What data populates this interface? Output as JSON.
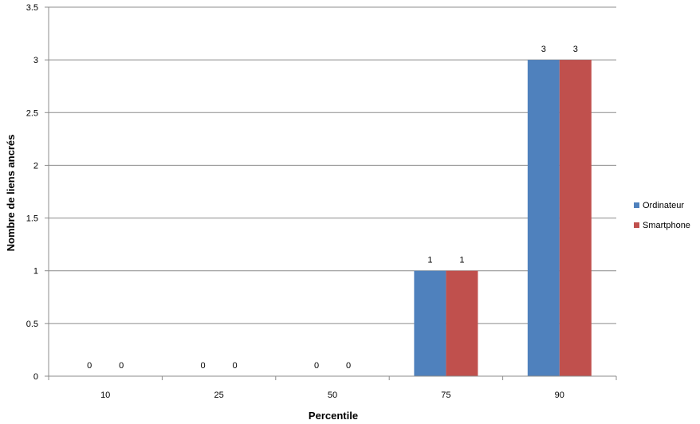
{
  "chart_data": {
    "type": "bar",
    "title": "",
    "xlabel": "Percentile",
    "ylabel": "Nombre de liens ancrés",
    "categories": [
      "10",
      "25",
      "50",
      "75",
      "90"
    ],
    "series": [
      {
        "name": "Ordinateur",
        "values": [
          0,
          0,
          0,
          1,
          3
        ],
        "color": "#4f81bd"
      },
      {
        "name": "Smartphone",
        "values": [
          0,
          0,
          0,
          1,
          3
        ],
        "color": "#c0504d"
      }
    ],
    "ylim": [
      0,
      3.5
    ],
    "yticks": [
      "0",
      "0.5",
      "1",
      "1.5",
      "2",
      "2.5",
      "3",
      "3.5"
    ],
    "grid": true,
    "legend": "right",
    "data_labels": true
  }
}
